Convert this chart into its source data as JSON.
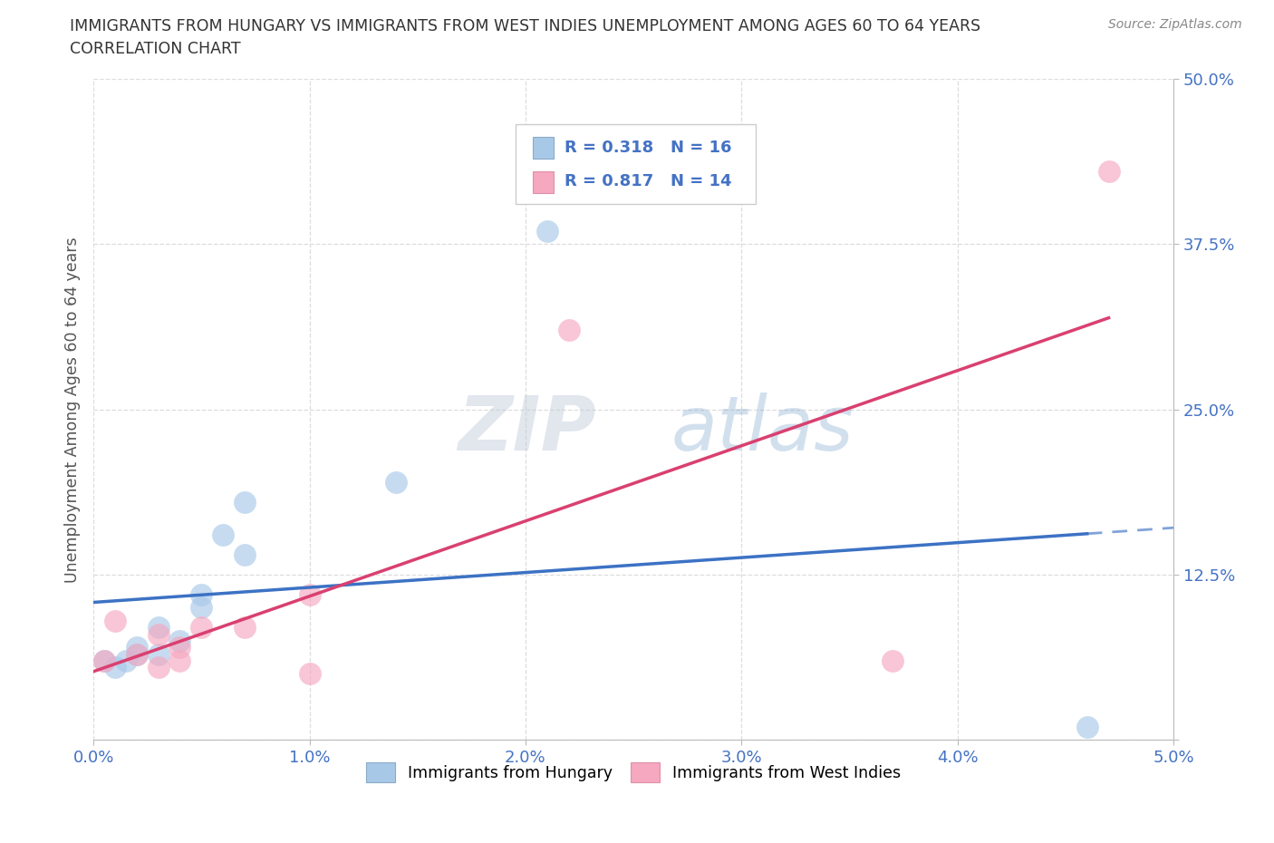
{
  "title_line1": "IMMIGRANTS FROM HUNGARY VS IMMIGRANTS FROM WEST INDIES UNEMPLOYMENT AMONG AGES 60 TO 64 YEARS",
  "title_line2": "CORRELATION CHART",
  "source": "Source: ZipAtlas.com",
  "ylabel": "Unemployment Among Ages 60 to 64 years",
  "xlim": [
    0.0,
    0.05
  ],
  "ylim": [
    0.0,
    0.5
  ],
  "xticks": [
    0.0,
    0.01,
    0.02,
    0.03,
    0.04,
    0.05
  ],
  "yticks": [
    0.0,
    0.125,
    0.25,
    0.375,
    0.5
  ],
  "xticklabels": [
    "0.0%",
    "1.0%",
    "2.0%",
    "3.0%",
    "4.0%",
    "5.0%"
  ],
  "yticklabels_right": [
    "",
    "12.5%",
    "25.0%",
    "37.5%",
    "50.0%"
  ],
  "hungary_x": [
    0.0005,
    0.001,
    0.0015,
    0.002,
    0.002,
    0.003,
    0.003,
    0.004,
    0.005,
    0.005,
    0.006,
    0.007,
    0.007,
    0.014,
    0.021,
    0.046
  ],
  "hungary_y": [
    0.06,
    0.055,
    0.06,
    0.065,
    0.07,
    0.065,
    0.085,
    0.075,
    0.1,
    0.11,
    0.155,
    0.14,
    0.18,
    0.195,
    0.385,
    0.01
  ],
  "west_indies_x": [
    0.0005,
    0.001,
    0.002,
    0.003,
    0.003,
    0.004,
    0.004,
    0.005,
    0.007,
    0.01,
    0.01,
    0.022,
    0.037,
    0.047
  ],
  "west_indies_y": [
    0.06,
    0.09,
    0.065,
    0.055,
    0.08,
    0.06,
    0.07,
    0.085,
    0.085,
    0.05,
    0.11,
    0.31,
    0.06,
    0.43
  ],
  "hungary_scatter_color": "#a8c8e8",
  "west_indies_scatter_color": "#f5a8c0",
  "hungary_line_color": "#3c72c4",
  "west_indies_line_color": "#d94070",
  "hungary_R": 0.318,
  "hungary_N": 16,
  "west_indies_R": 0.817,
  "west_indies_N": 14,
  "watermark_zip": "ZIP",
  "watermark_atlas": "atlas",
  "legend_label_hungary": "Immigrants from Hungary",
  "legend_label_west_indies": "Immigrants from West Indies",
  "title_color": "#333333",
  "axis_tick_color": "#4472c4",
  "grid_color": "#dddddd",
  "source_color": "#888888"
}
